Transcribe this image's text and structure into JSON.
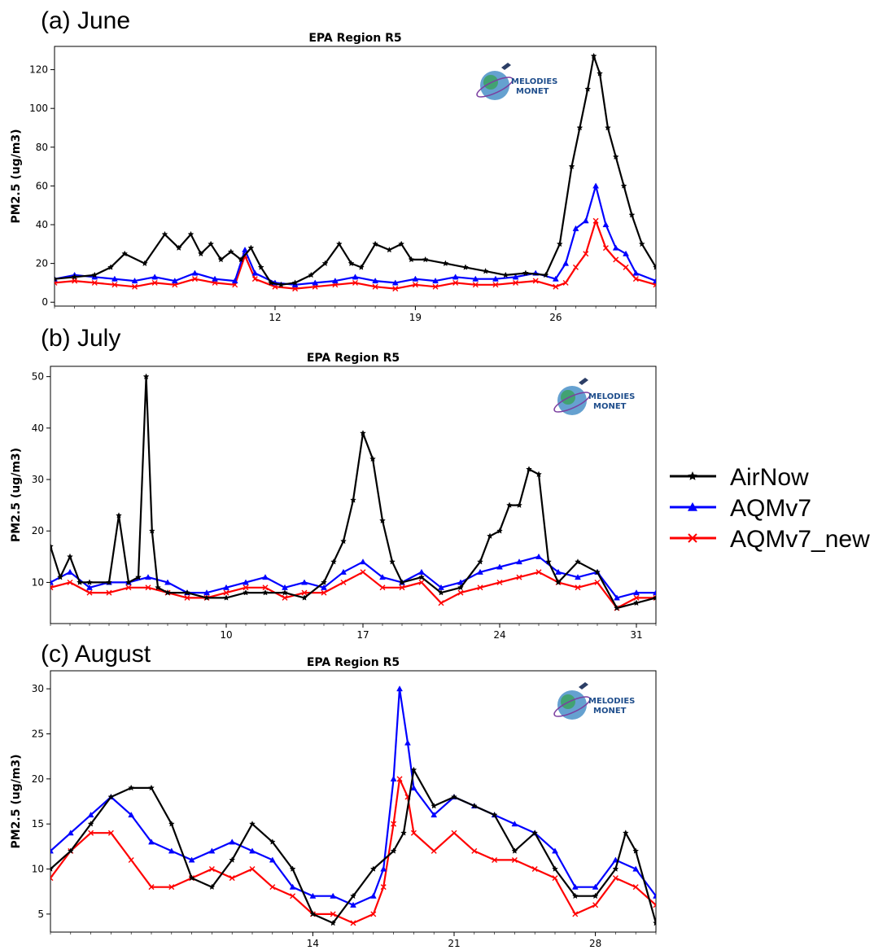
{
  "chart_data": [
    {
      "type": "line",
      "panel_label": "(a) June",
      "title": "EPA Region R5",
      "ylabel": "PM2.5 (ug/m3)",
      "xlim": [
        1,
        31
      ],
      "ylim": [
        -2,
        132
      ],
      "yticks": [
        0,
        20,
        40,
        60,
        80,
        100,
        120
      ],
      "xticks": [
        12,
        19,
        26
      ],
      "logo_text": [
        "MELODIES",
        "MONET"
      ],
      "series": [
        {
          "name": "AirNow",
          "color": "#000000",
          "marker": "star",
          "x": [
            1,
            2,
            3,
            3.8,
            4.5,
            5.5,
            6.5,
            7.2,
            7.8,
            8.3,
            8.8,
            9.3,
            9.8,
            10.3,
            10.8,
            11.3,
            11.8,
            12.3,
            13,
            13.8,
            14.5,
            15.2,
            15.8,
            16.3,
            17,
            17.7,
            18.3,
            18.8,
            19.5,
            20.5,
            21.5,
            22.5,
            23.5,
            24.5,
            25.5,
            26.2,
            26.8,
            27.2,
            27.6,
            27.9,
            28.2,
            28.6,
            29,
            29.4,
            29.8,
            30.3,
            31
          ],
          "y": [
            12,
            13,
            14,
            18,
            25,
            20,
            35,
            28,
            35,
            25,
            30,
            22,
            26,
            22,
            28,
            18,
            10,
            9,
            10,
            14,
            20,
            30,
            20,
            18,
            30,
            27,
            30,
            22,
            22,
            20,
            18,
            16,
            14,
            15,
            14,
            30,
            70,
            90,
            110,
            127,
            118,
            90,
            75,
            60,
            45,
            30,
            18
          ]
        },
        {
          "name": "AQMv7",
          "color": "#0000ff",
          "marker": "triangle",
          "x": [
            1,
            2,
            3,
            4,
            5,
            6,
            7,
            8,
            9,
            10,
            10.5,
            11,
            12,
            13,
            14,
            15,
            16,
            17,
            18,
            19,
            20,
            21,
            22,
            23,
            24,
            25,
            26,
            26.5,
            27,
            27.5,
            28,
            28.5,
            29,
            29.5,
            30,
            31
          ],
          "y": [
            12,
            14,
            13,
            12,
            11,
            13,
            11,
            15,
            12,
            11,
            27,
            15,
            10,
            9,
            10,
            11,
            13,
            11,
            10,
            12,
            11,
            13,
            12,
            12,
            13,
            15,
            12,
            20,
            38,
            42,
            60,
            40,
            28,
            25,
            15,
            11
          ]
        },
        {
          "name": "AQMv7_new",
          "color": "#ff0000",
          "marker": "x",
          "x": [
            1,
            2,
            3,
            4,
            5,
            6,
            7,
            8,
            9,
            10,
            10.5,
            11,
            12,
            13,
            14,
            15,
            16,
            17,
            18,
            19,
            20,
            21,
            22,
            23,
            24,
            25,
            26,
            26.5,
            27,
            27.5,
            28,
            28.5,
            29,
            29.5,
            30,
            31
          ],
          "y": [
            10,
            11,
            10,
            9,
            8,
            10,
            9,
            12,
            10,
            9,
            24,
            12,
            8,
            7,
            8,
            9,
            10,
            8,
            7,
            9,
            8,
            10,
            9,
            9,
            10,
            11,
            8,
            10,
            18,
            25,
            42,
            28,
            22,
            18,
            12,
            9
          ]
        }
      ]
    },
    {
      "type": "line",
      "panel_label": "(b) July",
      "title": "EPA Region R5",
      "ylabel": "PM2.5 (ug/m3)",
      "xlim": [
        1,
        32
      ],
      "ylim": [
        2,
        52
      ],
      "yticks": [
        10,
        20,
        30,
        40,
        50
      ],
      "xticks": [
        10,
        17,
        24,
        31
      ],
      "logo_text": [
        "MELODIES",
        "MONET"
      ],
      "series": [
        {
          "name": "AirNow",
          "color": "#000000",
          "marker": "star",
          "x": [
            1,
            1.5,
            2,
            2.5,
            3,
            4,
            4.5,
            5,
            5.5,
            5.9,
            6.2,
            6.5,
            7,
            8,
            9,
            10,
            11,
            12,
            13,
            14,
            15,
            15.5,
            16,
            16.5,
            17,
            17.5,
            18,
            18.5,
            19,
            20,
            21,
            22,
            23,
            23.5,
            24,
            24.5,
            25,
            25.5,
            26,
            26.5,
            27,
            28,
            29,
            30,
            31,
            32
          ],
          "y": [
            17,
            11,
            15,
            10,
            10,
            10,
            23,
            10,
            11,
            50,
            20,
            9,
            8,
            8,
            7,
            7,
            8,
            8,
            8,
            7,
            10,
            14,
            18,
            26,
            39,
            34,
            22,
            14,
            10,
            11,
            8,
            9,
            14,
            19,
            20,
            25,
            25,
            32,
            31,
            14,
            10,
            14,
            12,
            5,
            6,
            7
          ]
        },
        {
          "name": "AQMv7",
          "color": "#0000ff",
          "marker": "triangle",
          "x": [
            1,
            2,
            3,
            4,
            5,
            6,
            7,
            8,
            9,
            10,
            11,
            12,
            13,
            14,
            15,
            16,
            17,
            18,
            19,
            20,
            21,
            22,
            23,
            24,
            25,
            26,
            27,
            28,
            29,
            30,
            31,
            32
          ],
          "y": [
            10,
            12,
            9,
            10,
            10,
            11,
            10,
            8,
            8,
            9,
            10,
            11,
            9,
            10,
            9,
            12,
            14,
            11,
            10,
            12,
            9,
            10,
            12,
            13,
            14,
            15,
            12,
            11,
            12,
            7,
            8,
            8
          ]
        },
        {
          "name": "AQMv7_new",
          "color": "#ff0000",
          "marker": "x",
          "x": [
            1,
            2,
            3,
            4,
            5,
            6,
            7,
            8,
            9,
            10,
            11,
            12,
            13,
            14,
            15,
            16,
            17,
            18,
            19,
            20,
            21,
            22,
            23,
            24,
            25,
            26,
            27,
            28,
            29,
            30,
            31,
            32
          ],
          "y": [
            9,
            10,
            8,
            8,
            9,
            9,
            8,
            7,
            7,
            8,
            9,
            9,
            7,
            8,
            8,
            10,
            12,
            9,
            9,
            10,
            6,
            8,
            9,
            10,
            11,
            12,
            10,
            9,
            10,
            5,
            7,
            7
          ]
        }
      ]
    },
    {
      "type": "line",
      "panel_label": "(c) August",
      "title": "EPA Region R5",
      "ylabel": "PM2.5 (ug/m3)",
      "xlim": [
        1,
        31
      ],
      "ylim": [
        3,
        32
      ],
      "yticks": [
        5,
        10,
        15,
        20,
        25,
        30
      ],
      "xticks": [
        14,
        21,
        28
      ],
      "logo_text": [
        "MELODIES",
        "MONET"
      ],
      "series": [
        {
          "name": "AirNow",
          "color": "#000000",
          "marker": "star",
          "x": [
            1,
            2,
            3,
            4,
            5,
            6,
            7,
            8,
            9,
            10,
            11,
            12,
            13,
            14,
            15,
            16,
            17,
            18,
            18.5,
            19,
            20,
            21,
            22,
            23,
            24,
            25,
            26,
            27,
            28,
            29,
            29.5,
            30,
            31
          ],
          "y": [
            10,
            12,
            15,
            18,
            19,
            19,
            15,
            9,
            8,
            11,
            15,
            13,
            10,
            5,
            4,
            7,
            10,
            12,
            14,
            21,
            17,
            18,
            17,
            16,
            12,
            14,
            10,
            7,
            7,
            10,
            14,
            12,
            4
          ]
        },
        {
          "name": "AQMv7",
          "color": "#0000ff",
          "marker": "triangle",
          "x": [
            1,
            2,
            3,
            4,
            5,
            6,
            7,
            8,
            9,
            10,
            11,
            12,
            13,
            14,
            15,
            16,
            17,
            17.5,
            18,
            18.3,
            18.7,
            19,
            20,
            21,
            22,
            23,
            24,
            25,
            26,
            27,
            28,
            29,
            30,
            31
          ],
          "y": [
            12,
            14,
            16,
            18,
            16,
            13,
            12,
            11,
            12,
            13,
            12,
            11,
            8,
            7,
            7,
            6,
            7,
            10,
            20,
            30,
            24,
            19,
            16,
            18,
            17,
            16,
            15,
            14,
            12,
            8,
            8,
            11,
            10,
            7
          ]
        },
        {
          "name": "AQMv7_new",
          "color": "#ff0000",
          "marker": "x",
          "x": [
            1,
            2,
            3,
            4,
            5,
            6,
            7,
            8,
            9,
            10,
            11,
            12,
            13,
            14,
            15,
            16,
            17,
            17.5,
            18,
            18.3,
            18.7,
            19,
            20,
            21,
            22,
            23,
            24,
            25,
            26,
            27,
            28,
            29,
            30,
            31
          ],
          "y": [
            9,
            12,
            14,
            14,
            11,
            8,
            8,
            9,
            10,
            9,
            10,
            8,
            7,
            5,
            5,
            4,
            5,
            8,
            15,
            20,
            18,
            14,
            12,
            14,
            12,
            11,
            11,
            10,
            9,
            5,
            6,
            9,
            8,
            6
          ]
        }
      ]
    }
  ],
  "legend": [
    {
      "label": "AirNow",
      "color": "#000000",
      "marker": "star"
    },
    {
      "label": "AQMv7",
      "color": "#0000ff",
      "marker": "triangle"
    },
    {
      "label": "AQMv7_new",
      "color": "#ff0000",
      "marker": "x"
    }
  ]
}
